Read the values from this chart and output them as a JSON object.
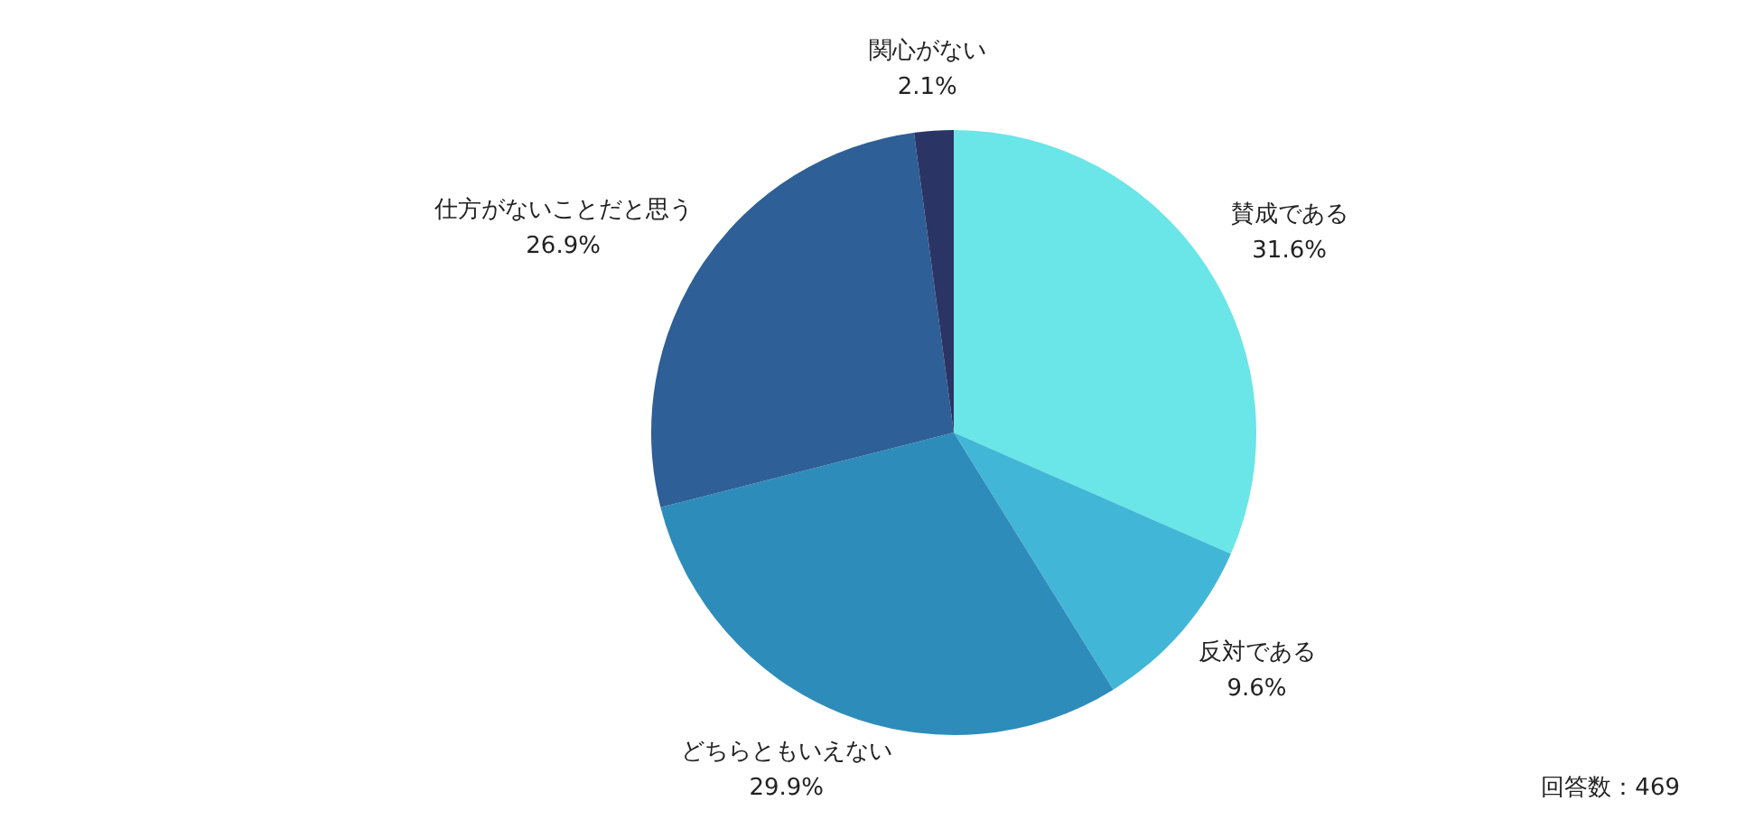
{
  "chart_data": {
    "type": "pie",
    "categories": [
      "賛成である",
      "反対である",
      "どちらともいえない",
      "仕方がないことだと思う",
      "関心がない"
    ],
    "values": [
      31.6,
      9.6,
      29.9,
      26.9,
      2.1
    ],
    "colors": [
      "#6ae5e8",
      "#42b6d6",
      "#2e8cbb",
      "#2e5f96",
      "#2a3566"
    ],
    "value_labels": [
      "31.6%",
      "9.6%",
      "29.9%",
      "26.9%",
      "2.1%"
    ],
    "legend": false,
    "annotations": [
      "回答数：469"
    ]
  }
}
